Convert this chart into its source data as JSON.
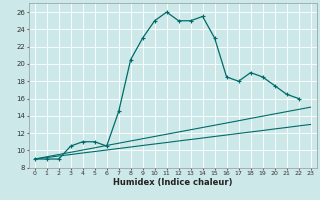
{
  "xlabel": "Humidex (Indice chaleur)",
  "bg_color": "#cde8e8",
  "grid_color": "#ffffff",
  "line_color": "#006b6b",
  "xlim": [
    -0.5,
    23.5
  ],
  "ylim": [
    8,
    27
  ],
  "curve1_x": [
    0,
    1,
    2,
    3,
    4,
    5,
    6,
    7,
    8,
    9,
    10,
    11,
    12,
    13,
    14,
    15,
    16,
    17,
    18,
    19,
    20,
    21,
    22
  ],
  "curve1_y": [
    9,
    9,
    9,
    10.5,
    11,
    11,
    10.5,
    14.5,
    20.5,
    23,
    25,
    26,
    25,
    25,
    25.5,
    23,
    18.5,
    18,
    19,
    18.5,
    17.5,
    16.5,
    16
  ],
  "curve2_x": [
    0,
    1,
    2,
    3,
    4,
    5,
    6,
    7,
    8,
    9,
    10,
    11,
    12,
    13,
    14,
    15,
    16,
    17,
    18,
    19,
    20,
    21,
    22,
    23
  ],
  "curve2_y": [
    9,
    9.17,
    9.35,
    9.52,
    9.7,
    9.87,
    10.04,
    10.22,
    10.39,
    10.57,
    10.74,
    10.91,
    11.09,
    11.26,
    11.43,
    11.61,
    11.78,
    11.96,
    12.13,
    12.3,
    12.48,
    12.65,
    12.83,
    13.0
  ],
  "curve3_x": [
    0,
    1,
    2,
    3,
    4,
    5,
    6,
    7,
    8,
    9,
    10,
    11,
    12,
    13,
    14,
    15,
    16,
    17,
    18,
    19,
    20,
    21,
    22,
    23
  ],
  "curve3_y": [
    9,
    9.26,
    9.52,
    9.78,
    10.04,
    10.3,
    10.57,
    10.83,
    11.09,
    11.35,
    11.61,
    11.87,
    12.13,
    12.39,
    12.65,
    12.91,
    13.17,
    13.43,
    13.7,
    13.96,
    14.22,
    14.48,
    14.74,
    15.0
  ],
  "xtick_labels": [
    "0",
    "1",
    "2",
    "3",
    "4",
    "5",
    "6",
    "7",
    "8",
    "9",
    "10",
    "11",
    "12",
    "13",
    "14",
    "15",
    "16",
    "17",
    "18",
    "19",
    "20",
    "21",
    "22",
    "23"
  ],
  "ytick_labels": [
    "8",
    "10",
    "12",
    "14",
    "16",
    "18",
    "20",
    "22",
    "24",
    "26"
  ]
}
